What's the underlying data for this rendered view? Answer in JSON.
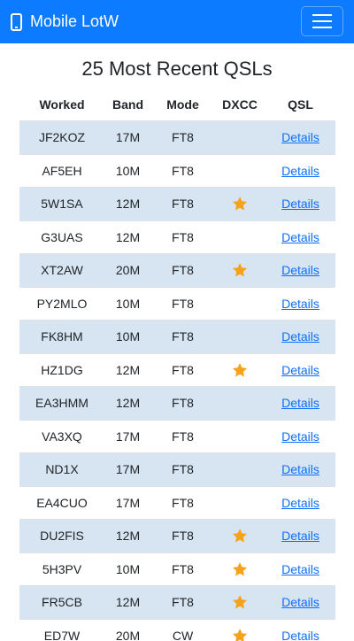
{
  "navbar": {
    "brand": "Mobile LotW",
    "brand_icon": "mobile-phone-icon",
    "menu_icon": "hamburger-menu-icon",
    "color": "#0d7bff"
  },
  "page": {
    "title": "25 Most Recent QSLs"
  },
  "table": {
    "headers": {
      "worked": "Worked",
      "band": "Band",
      "mode": "Mode",
      "dxcc": "DXCC",
      "qsl": "QSL"
    },
    "star_icon": "star-icon",
    "star_color": "#f7a21b",
    "stripe_color": "#d7e5f2",
    "rows": [
      {
        "worked": "JF2KOZ",
        "band": "17M",
        "mode": "FT8",
        "dxcc": false,
        "qsl": "Details"
      },
      {
        "worked": "AF5EH",
        "band": "10M",
        "mode": "FT8",
        "dxcc": false,
        "qsl": "Details"
      },
      {
        "worked": "5W1SA",
        "band": "12M",
        "mode": "FT8",
        "dxcc": true,
        "qsl": "Details"
      },
      {
        "worked": "G3UAS",
        "band": "12M",
        "mode": "FT8",
        "dxcc": false,
        "qsl": "Details"
      },
      {
        "worked": "XT2AW",
        "band": "20M",
        "mode": "FT8",
        "dxcc": true,
        "qsl": "Details"
      },
      {
        "worked": "PY2MLO",
        "band": "10M",
        "mode": "FT8",
        "dxcc": false,
        "qsl": "Details"
      },
      {
        "worked": "FK8HM",
        "band": "10M",
        "mode": "FT8",
        "dxcc": false,
        "qsl": "Details"
      },
      {
        "worked": "HZ1DG",
        "band": "12M",
        "mode": "FT8",
        "dxcc": true,
        "qsl": "Details"
      },
      {
        "worked": "EA3HMM",
        "band": "12M",
        "mode": "FT8",
        "dxcc": false,
        "qsl": "Details"
      },
      {
        "worked": "VA3XQ",
        "band": "17M",
        "mode": "FT8",
        "dxcc": false,
        "qsl": "Details"
      },
      {
        "worked": "ND1X",
        "band": "17M",
        "mode": "FT8",
        "dxcc": false,
        "qsl": "Details"
      },
      {
        "worked": "EA4CUO",
        "band": "17M",
        "mode": "FT8",
        "dxcc": false,
        "qsl": "Details"
      },
      {
        "worked": "DU2FIS",
        "band": "12M",
        "mode": "FT8",
        "dxcc": true,
        "qsl": "Details"
      },
      {
        "worked": "5H3PV",
        "band": "10M",
        "mode": "FT8",
        "dxcc": true,
        "qsl": "Details"
      },
      {
        "worked": "FR5CB",
        "band": "12M",
        "mode": "FT8",
        "dxcc": true,
        "qsl": "Details"
      },
      {
        "worked": "ED7W",
        "band": "20M",
        "mode": "CW",
        "dxcc": true,
        "qsl": "Details"
      }
    ]
  }
}
